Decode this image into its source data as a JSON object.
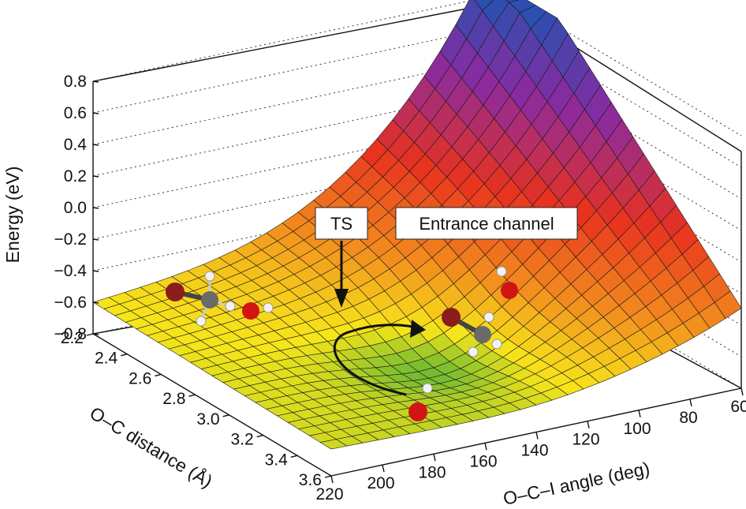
{
  "chart_data": {
    "type": "surface",
    "title": "",
    "zlabel": "Energy (eV)",
    "xlabel": "O–C distance (Å)",
    "ylabel": "O–C–I angle (deg)",
    "zlim": [
      -0.8,
      0.8
    ],
    "xlim": [
      2.2,
      3.6
    ],
    "ylim": [
      60,
      220
    ],
    "z_ticks": [
      "0.8",
      "0.6",
      "0.4",
      "0.2",
      "0.0",
      "−0.2",
      "−0.4",
      "−0.6",
      "−0.8"
    ],
    "x_ticks": [
      "2.2",
      "2.4",
      "2.6",
      "2.8",
      "3.0",
      "3.2",
      "3.4",
      "3.6"
    ],
    "y_ticks": [
      "220",
      "200",
      "180",
      "160",
      "140",
      "120",
      "100",
      "80",
      "60"
    ],
    "annotations": [
      {
        "id": "ts",
        "text": "TS"
      },
      {
        "id": "entrance",
        "text": "Entrance channel"
      }
    ],
    "surface_samples": {
      "x": [
        2.2,
        3.6
      ],
      "y": [
        60,
        220
      ],
      "corner_energy": {
        "x2.2_y220": -0.55,
        "x3.6_y220": -0.72,
        "x2.2_y60": 0.85,
        "x3.6_y60": -0.35
      },
      "ts": {
        "x": 2.7,
        "y": 170,
        "energy": -0.6
      },
      "minimum": {
        "x": 3.1,
        "y": 135,
        "energy": -0.72
      }
    },
    "colors": {
      "low": "#3aa83a",
      "mid": "#f6e51a",
      "orange": "#f28a1e",
      "red": "#e8321e",
      "purple": "#8a2aa0",
      "high": "#2c4fb0"
    }
  }
}
